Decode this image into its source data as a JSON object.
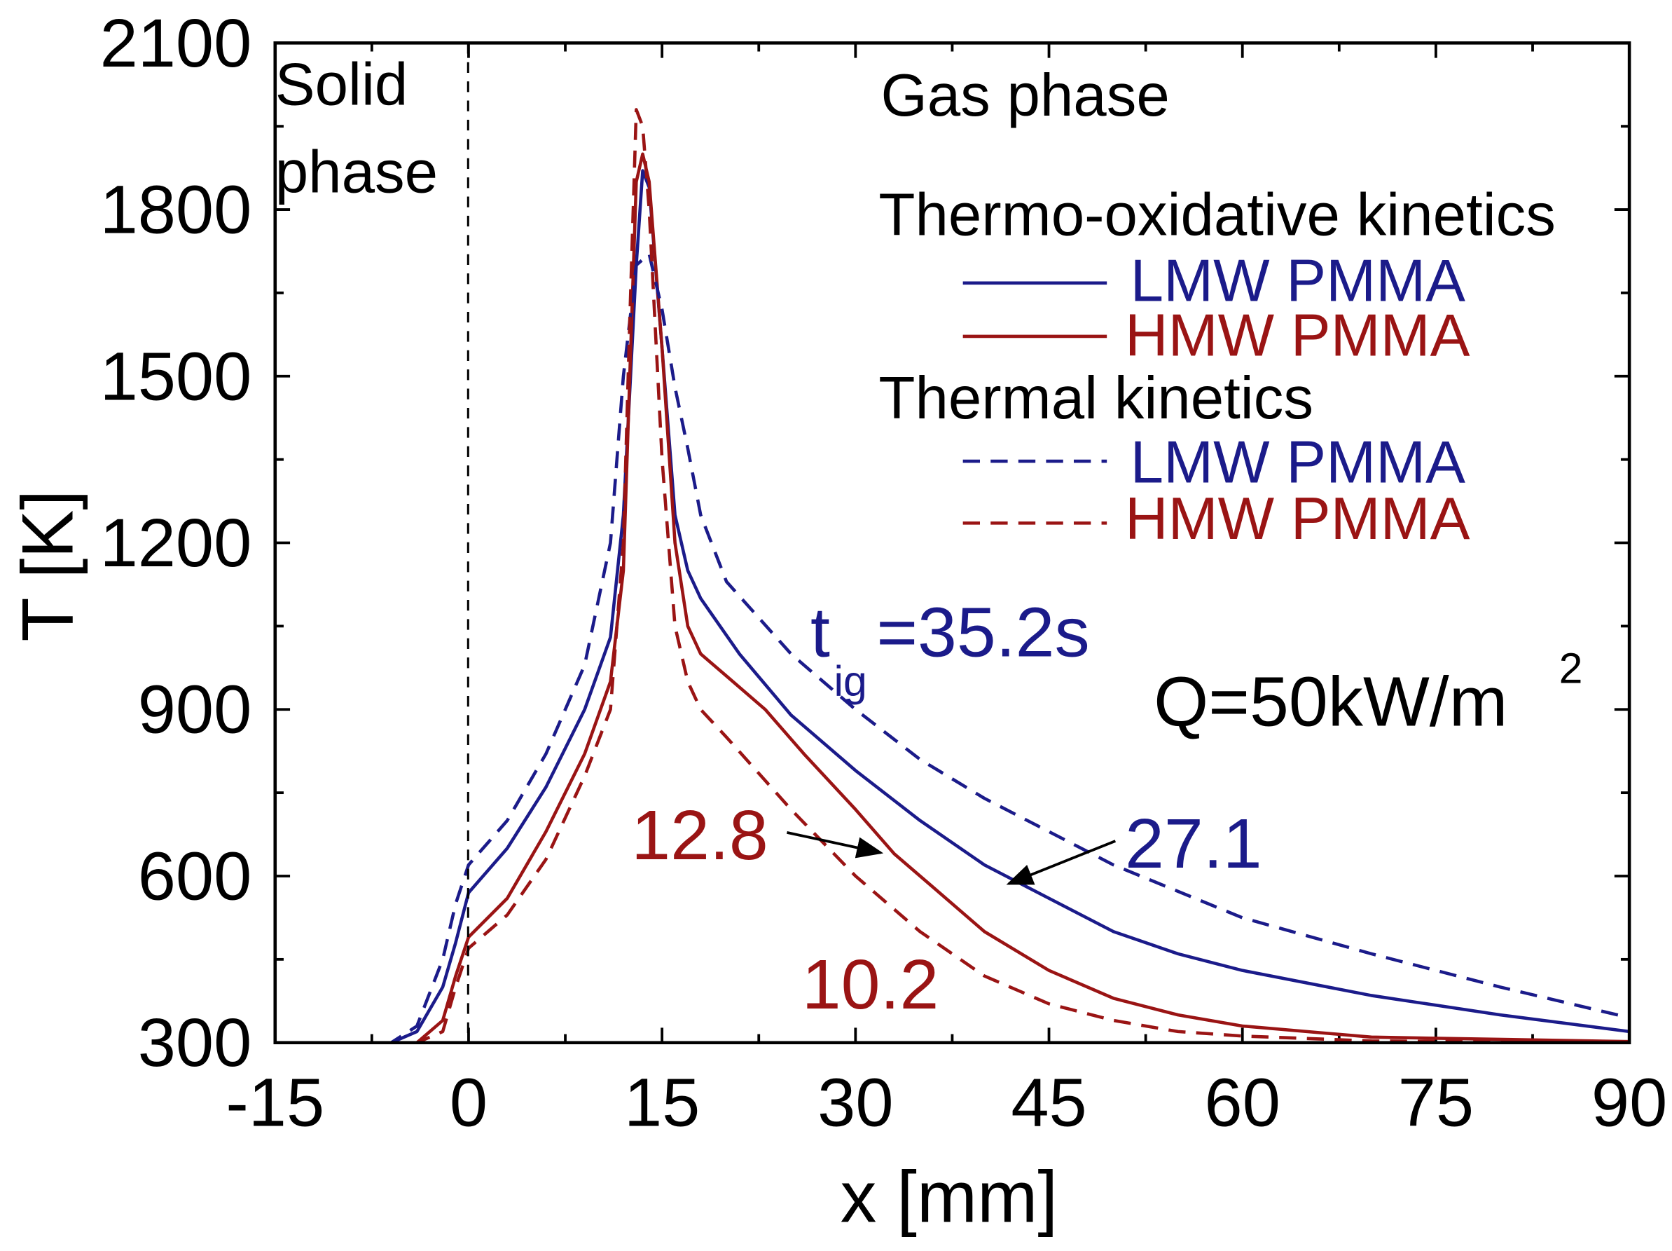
{
  "chart_data": {
    "type": "line",
    "title": "",
    "xlabel": "x [mm]",
    "ylabel": "T [K]",
    "xlim": [
      -15,
      90
    ],
    "ylim": [
      300,
      2100
    ],
    "xticks": [
      -15,
      0,
      15,
      30,
      45,
      60,
      75,
      90
    ],
    "yticks": [
      300,
      600,
      900,
      1200,
      1500,
      1800,
      2100
    ],
    "grid": false,
    "colors": {
      "blue": "#1b1b8a",
      "red": "#9a1414"
    },
    "legend": {
      "placement": "top-right",
      "group1": "Thermo-oxidative kinetics",
      "group2": "Thermal kinetics",
      "entries": [
        "LMW PMMA",
        "HMW PMMA",
        "LMW PMMA",
        "HMW PMMA"
      ]
    },
    "series": [
      {
        "name": "LMW PMMA (Thermo-oxidative kinetics)",
        "color": "#1b1b8a",
        "dash": false,
        "points": [
          [
            -15,
            300
          ],
          [
            -6,
            300
          ],
          [
            -4,
            320
          ],
          [
            -2,
            400
          ],
          [
            -1,
            480
          ],
          [
            0,
            570
          ],
          [
            3,
            650
          ],
          [
            6,
            760
          ],
          [
            9,
            900
          ],
          [
            11,
            1030
          ],
          [
            12,
            1250
          ],
          [
            13,
            1700
          ],
          [
            13.5,
            1870
          ],
          [
            14,
            1840
          ],
          [
            15,
            1550
          ],
          [
            16,
            1250
          ],
          [
            17,
            1150
          ],
          [
            18,
            1100
          ],
          [
            21,
            1000
          ],
          [
            25,
            890
          ],
          [
            30,
            790
          ],
          [
            35,
            700
          ],
          [
            40,
            620
          ],
          [
            45,
            560
          ],
          [
            50,
            500
          ],
          [
            55,
            460
          ],
          [
            60,
            430
          ],
          [
            70,
            385
          ],
          [
            80,
            350
          ],
          [
            90,
            320
          ]
        ]
      },
      {
        "name": "HMW PMMA (Thermo-oxidative kinetics)",
        "color": "#9a1414",
        "dash": false,
        "points": [
          [
            -15,
            300
          ],
          [
            -4,
            300
          ],
          [
            -2,
            340
          ],
          [
            -1,
            420
          ],
          [
            0,
            490
          ],
          [
            3,
            560
          ],
          [
            6,
            680
          ],
          [
            9,
            820
          ],
          [
            11,
            950
          ],
          [
            12,
            1150
          ],
          [
            12.5,
            1500
          ],
          [
            13,
            1850
          ],
          [
            13.5,
            1900
          ],
          [
            14,
            1850
          ],
          [
            15,
            1550
          ],
          [
            16,
            1200
          ],
          [
            17,
            1050
          ],
          [
            18,
            1000
          ],
          [
            20,
            960
          ],
          [
            23,
            900
          ],
          [
            26,
            820
          ],
          [
            30,
            720
          ],
          [
            33,
            640
          ],
          [
            36,
            580
          ],
          [
            40,
            500
          ],
          [
            45,
            430
          ],
          [
            50,
            380
          ],
          [
            55,
            350
          ],
          [
            60,
            330
          ],
          [
            70,
            310
          ],
          [
            90,
            302
          ]
        ]
      },
      {
        "name": "LMW PMMA (Thermal kinetics)",
        "color": "#1b1b8a",
        "dash": true,
        "points": [
          [
            -15,
            300
          ],
          [
            -6,
            300
          ],
          [
            -4,
            330
          ],
          [
            -2,
            450
          ],
          [
            -1,
            550
          ],
          [
            0,
            620
          ],
          [
            3,
            700
          ],
          [
            6,
            820
          ],
          [
            9,
            980
          ],
          [
            11,
            1200
          ],
          [
            12,
            1500
          ],
          [
            13,
            1700
          ],
          [
            14,
            1720
          ],
          [
            15,
            1620
          ],
          [
            16,
            1480
          ],
          [
            17,
            1370
          ],
          [
            18,
            1250
          ],
          [
            20,
            1130
          ],
          [
            25,
            1000
          ],
          [
            30,
            900
          ],
          [
            35,
            810
          ],
          [
            40,
            740
          ],
          [
            45,
            680
          ],
          [
            50,
            620
          ],
          [
            60,
            525
          ],
          [
            70,
            460
          ],
          [
            80,
            400
          ],
          [
            90,
            345
          ]
        ]
      },
      {
        "name": "HMW PMMA (Thermal kinetics)",
        "color": "#9a1414",
        "dash": true,
        "points": [
          [
            -15,
            300
          ],
          [
            -4,
            300
          ],
          [
            -2,
            320
          ],
          [
            -1,
            400
          ],
          [
            0,
            470
          ],
          [
            3,
            530
          ],
          [
            6,
            630
          ],
          [
            9,
            780
          ],
          [
            11,
            900
          ],
          [
            12,
            1200
          ],
          [
            12.5,
            1600
          ],
          [
            13,
            1980
          ],
          [
            13.5,
            1950
          ],
          [
            14,
            1800
          ],
          [
            15,
            1350
          ],
          [
            16,
            1050
          ],
          [
            17,
            950
          ],
          [
            18,
            900
          ],
          [
            20,
            850
          ],
          [
            25,
            720
          ],
          [
            30,
            600
          ],
          [
            35,
            500
          ],
          [
            40,
            420
          ],
          [
            45,
            370
          ],
          [
            50,
            340
          ],
          [
            55,
            320
          ],
          [
            60,
            312
          ],
          [
            70,
            303
          ],
          [
            90,
            300
          ]
        ]
      }
    ],
    "annotations": {
      "solid_line1": "Solid",
      "solid_line2": "phase",
      "gas": "Gas phase",
      "tig_t": "t",
      "tig_sub": "ig",
      "tig_val": "=35.2s",
      "q": "Q=50kW/m",
      "q_sup": "2",
      "l128": "12.8",
      "l271": "27.1",
      "l102": "10.2"
    },
    "vline_x": 0
  }
}
